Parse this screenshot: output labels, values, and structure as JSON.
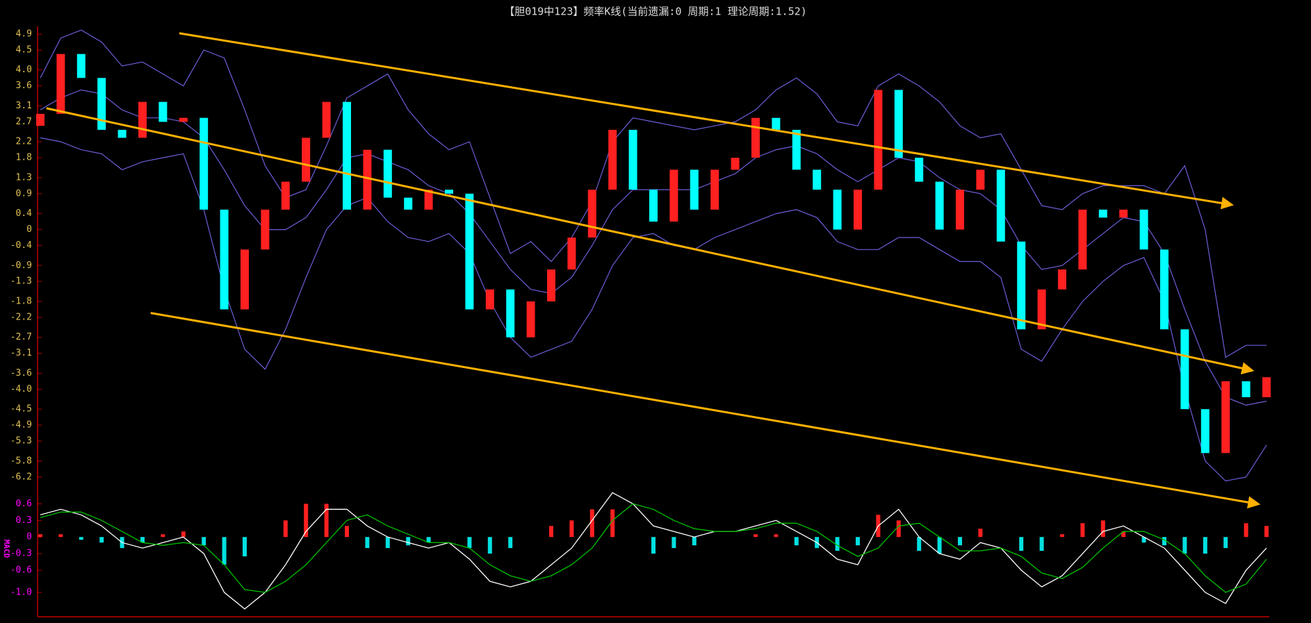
{
  "chart_data": [
    {
      "type": "candlestick",
      "title": "【胆019中123】频率K线(当前遗漏:0 周期:1 理论周期:1.52)",
      "open": [
        2.6,
        2.9,
        4.4,
        3.8,
        2.5,
        2.3,
        3.2,
        2.7,
        2.8,
        0.5,
        -2.0,
        -0.5,
        0.5,
        1.2,
        2.3,
        3.2,
        0.5,
        2.0,
        0.8,
        0.5,
        1.0,
        0.9,
        -2.0,
        -1.5,
        -2.7,
        -1.8,
        -1.0,
        -0.2,
        1.0,
        2.5,
        1.0,
        0.2,
        1.5,
        0.5,
        1.5,
        1.8,
        2.8,
        2.5,
        1.5,
        1.0,
        0.0,
        1.0,
        3.5,
        1.8,
        1.2,
        0.0,
        1.0,
        1.5,
        -0.3,
        -2.5,
        -1.5,
        -1.0,
        0.5,
        0.3,
        0.5,
        -0.5,
        -2.5,
        -4.5,
        -5.6,
        -3.8,
        -4.2
      ],
      "close": [
        2.9,
        4.4,
        3.8,
        2.5,
        2.3,
        3.2,
        2.7,
        2.8,
        0.5,
        -2.0,
        -0.5,
        0.5,
        1.2,
        2.3,
        3.2,
        0.5,
        2.0,
        0.8,
        0.5,
        1.0,
        0.9,
        -2.0,
        -1.5,
        -2.7,
        -1.8,
        -1.0,
        -0.2,
        1.0,
        2.5,
        1.0,
        0.2,
        1.5,
        0.5,
        1.5,
        1.8,
        2.8,
        2.5,
        1.5,
        1.0,
        0.0,
        1.0,
        3.5,
        1.8,
        1.2,
        0.0,
        1.0,
        1.5,
        -0.3,
        -2.5,
        -1.5,
        -1.0,
        0.5,
        0.3,
        0.5,
        -0.5,
        -2.5,
        -4.5,
        -5.6,
        -3.8,
        -4.2,
        -3.7
      ],
      "up_color": "#ff2020",
      "down_color": "#00ffff",
      "overlays": [
        {
          "color": "#6a5fd8",
          "values": [
            3.8,
            4.8,
            5.0,
            4.7,
            4.1,
            4.2,
            3.9,
            3.6,
            4.5,
            4.3,
            3.0,
            1.6,
            0.8,
            1.0,
            2.1,
            3.3,
            3.6,
            3.9,
            3.0,
            2.4,
            2.0,
            2.2,
            0.8,
            -0.6,
            -0.3,
            -0.8,
            -0.2,
            0.7,
            2.2,
            2.8,
            2.7,
            2.6,
            2.5,
            2.6,
            2.7,
            3.0,
            3.5,
            3.8,
            3.4,
            2.7,
            2.6,
            3.6,
            3.9,
            3.6,
            3.2,
            2.6,
            2.3,
            2.4,
            1.5,
            0.6,
            0.5,
            0.9,
            1.1,
            1.1,
            1.1,
            0.9,
            1.6,
            0.0,
            -3.2,
            -2.9,
            -2.9
          ]
        },
        {
          "color": "#6a5fd8",
          "values": [
            3.0,
            3.3,
            3.5,
            3.4,
            3.0,
            2.8,
            2.8,
            2.7,
            2.3,
            1.5,
            0.6,
            0.0,
            0.0,
            0.3,
            1.0,
            1.8,
            1.9,
            1.7,
            1.5,
            1.1,
            0.9,
            0.4,
            -0.3,
            -1.0,
            -1.5,
            -1.6,
            -1.2,
            -0.4,
            0.5,
            1.0,
            1.0,
            1.0,
            1.0,
            1.2,
            1.4,
            1.8,
            2.0,
            2.1,
            1.9,
            1.5,
            1.2,
            1.5,
            1.8,
            1.7,
            1.3,
            1.0,
            0.9,
            0.5,
            -0.4,
            -1.0,
            -0.9,
            -0.5,
            -0.1,
            0.3,
            0.2,
            -0.6,
            -2.0,
            -3.3,
            -4.2,
            -4.4,
            -4.3
          ]
        },
        {
          "color": "#6a5fd8",
          "values": [
            2.3,
            2.2,
            2.0,
            1.9,
            1.5,
            1.7,
            1.8,
            1.9,
            0.5,
            -1.5,
            -3.0,
            -3.5,
            -2.5,
            -1.2,
            0.0,
            0.6,
            0.8,
            0.2,
            -0.2,
            -0.3,
            -0.1,
            -0.6,
            -1.8,
            -2.7,
            -3.2,
            -3.0,
            -2.8,
            -2.0,
            -0.9,
            -0.2,
            -0.1,
            -0.4,
            -0.5,
            -0.2,
            0.0,
            0.2,
            0.4,
            0.5,
            0.3,
            -0.3,
            -0.5,
            -0.5,
            -0.2,
            -0.2,
            -0.5,
            -0.8,
            -0.8,
            -1.2,
            -3.0,
            -3.3,
            -2.5,
            -1.8,
            -1.3,
            -0.9,
            -0.7,
            -1.8,
            -4.0,
            -5.8,
            -6.3,
            -6.2,
            -5.4
          ]
        }
      ],
      "trendlines": [
        {
          "color": "#ffb000",
          "x": [
            6.8,
            58.2
          ],
          "y": [
            4.92,
            0.63
          ]
        },
        {
          "color": "#ffb000",
          "x": [
            0.3,
            59.2
          ],
          "y": [
            3.04,
            -3.52
          ]
        },
        {
          "color": "#ffb000",
          "x": [
            5.4,
            59.5
          ],
          "y": [
            -2.09,
            -6.87
          ]
        }
      ],
      "ylim": [
        -6.9,
        5.05
      ],
      "yticks": [
        4.9,
        4.5,
        {
          "value": 4,
          "label": "4.0"
        },
        3.6,
        3.1,
        2.7,
        2.2,
        1.8,
        1.3,
        0.9,
        0.4,
        0,
        -0.4,
        -0.9,
        -1.3,
        -1.8,
        -2.2,
        -2.7,
        -3.1,
        -3.6,
        {
          "value": -4,
          "label": "-4.0"
        },
        -4.5,
        -4.9,
        -5.3,
        -5.8,
        -6.2
      ],
      "tick_color": "#e0c050"
    },
    {
      "type": "macd",
      "ylabel": "MACD",
      "series": [
        {
          "color": "#ffffff",
          "values": [
            0.4,
            0.5,
            0.4,
            0.2,
            -0.1,
            -0.2,
            -0.1,
            0.0,
            -0.3,
            -1.0,
            -1.3,
            -1.0,
            -0.5,
            0.1,
            0.5,
            0.5,
            0.2,
            0.0,
            -0.1,
            -0.2,
            -0.1,
            -0.4,
            -0.8,
            -0.9,
            -0.8,
            -0.5,
            -0.2,
            0.3,
            0.8,
            0.6,
            0.2,
            0.1,
            0.0,
            0.1,
            0.1,
            0.2,
            0.3,
            0.1,
            -0.1,
            -0.4,
            -0.5,
            0.2,
            0.5,
            0.0,
            -0.3,
            -0.4,
            -0.1,
            -0.2,
            -0.6,
            -0.9,
            -0.7,
            -0.3,
            0.1,
            0.2,
            0.0,
            -0.2,
            -0.6,
            -1.0,
            -1.2,
            -0.6,
            -0.2
          ]
        },
        {
          "color": "#00c000",
          "values": [
            0.35,
            0.45,
            0.45,
            0.3,
            0.1,
            -0.1,
            -0.15,
            -0.1,
            -0.15,
            -0.5,
            -0.95,
            -1.0,
            -0.8,
            -0.5,
            -0.1,
            0.3,
            0.4,
            0.2,
            0.05,
            -0.1,
            -0.1,
            -0.2,
            -0.5,
            -0.7,
            -0.8,
            -0.7,
            -0.5,
            -0.2,
            0.3,
            0.6,
            0.5,
            0.3,
            0.15,
            0.1,
            0.1,
            0.15,
            0.25,
            0.25,
            0.1,
            -0.15,
            -0.35,
            -0.2,
            0.2,
            0.25,
            0.0,
            -0.25,
            -0.25,
            -0.2,
            -0.35,
            -0.65,
            -0.75,
            -0.55,
            -0.2,
            0.1,
            0.1,
            -0.05,
            -0.3,
            -0.7,
            -1.0,
            -0.85,
            -0.4
          ]
        }
      ],
      "histogram": {
        "up_color": "#ff2020",
        "down_color": "#00e0e0",
        "values": [
          0.05,
          0.05,
          -0.05,
          -0.1,
          -0.2,
          -0.1,
          0.05,
          0.1,
          -0.15,
          -0.5,
          -0.35,
          0.0,
          0.3,
          0.6,
          0.6,
          0.2,
          -0.2,
          -0.2,
          -0.15,
          -0.1,
          0.0,
          -0.2,
          -0.3,
          -0.2,
          0.0,
          0.2,
          0.3,
          0.5,
          0.5,
          0.0,
          -0.3,
          -0.2,
          -0.15,
          0.0,
          0.0,
          0.05,
          0.05,
          -0.15,
          -0.2,
          -0.25,
          -0.15,
          0.4,
          0.3,
          -0.25,
          -0.3,
          -0.15,
          0.15,
          0.0,
          -0.25,
          -0.25,
          0.05,
          0.25,
          0.3,
          0.1,
          -0.1,
          -0.15,
          -0.3,
          -0.3,
          -0.2,
          0.25,
          0.2
        ]
      },
      "ylim": [
        -1.44,
        0.72
      ],
      "yticks": [
        0.6,
        0.3,
        0,
        -0.3,
        -0.6,
        {
          "value": -1,
          "label": "-1.0"
        }
      ],
      "tick_color": "#ff00ff"
    }
  ]
}
